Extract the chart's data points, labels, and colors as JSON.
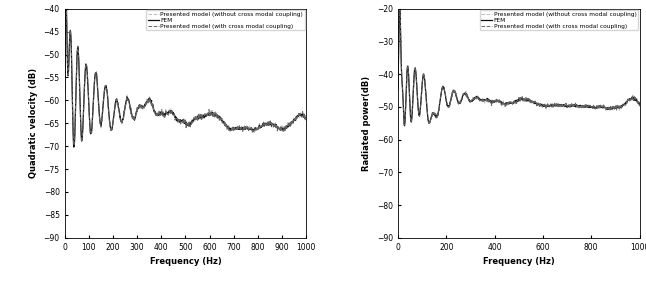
{
  "left_plot": {
    "ylabel": "Quadratic velocity (dB)",
    "xlabel": "Frequency (Hz)",
    "ylim": [
      -90,
      -40
    ],
    "xlim": [
      0,
      1000
    ],
    "yticks": [
      -90,
      -85,
      -80,
      -75,
      -70,
      -65,
      -60,
      -55,
      -50,
      -45,
      -40
    ],
    "xticks": [
      0,
      100,
      200,
      300,
      400,
      500,
      600,
      700,
      800,
      900,
      1000
    ],
    "legend": [
      "Presented model (without cross modal coupling)",
      "FEM",
      "Presented model (with cross modal coupling)"
    ]
  },
  "right_plot": {
    "ylabel": "Radiated power(dB)",
    "xlabel": "Frequency (Hz)",
    "ylim": [
      -90,
      -20
    ],
    "xlim": [
      0,
      1000
    ],
    "yticks": [
      -90,
      -80,
      -70,
      -60,
      -50,
      -40,
      -30,
      -20
    ],
    "xticks": [
      0,
      200,
      400,
      600,
      800,
      1000
    ],
    "legend": [
      "Presented model (without cross modal coupling)",
      "FEM",
      "Presented model (with cross modal coupling)"
    ]
  },
  "line_colors": {
    "no_cross": "#bbbbbb",
    "fem": "#111111",
    "cross": "#666666"
  },
  "line_styles": {
    "no_cross": "--",
    "fem": "-",
    "cross": "--"
  },
  "line_widths": {
    "no_cross": 0.7,
    "fem": 0.9,
    "cross": 0.7
  },
  "figsize": [
    6.46,
    2.9
  ],
  "dpi": 100,
  "legend_fontsize": 4.2,
  "axis_fontsize": 6,
  "tick_fontsize": 5.5
}
